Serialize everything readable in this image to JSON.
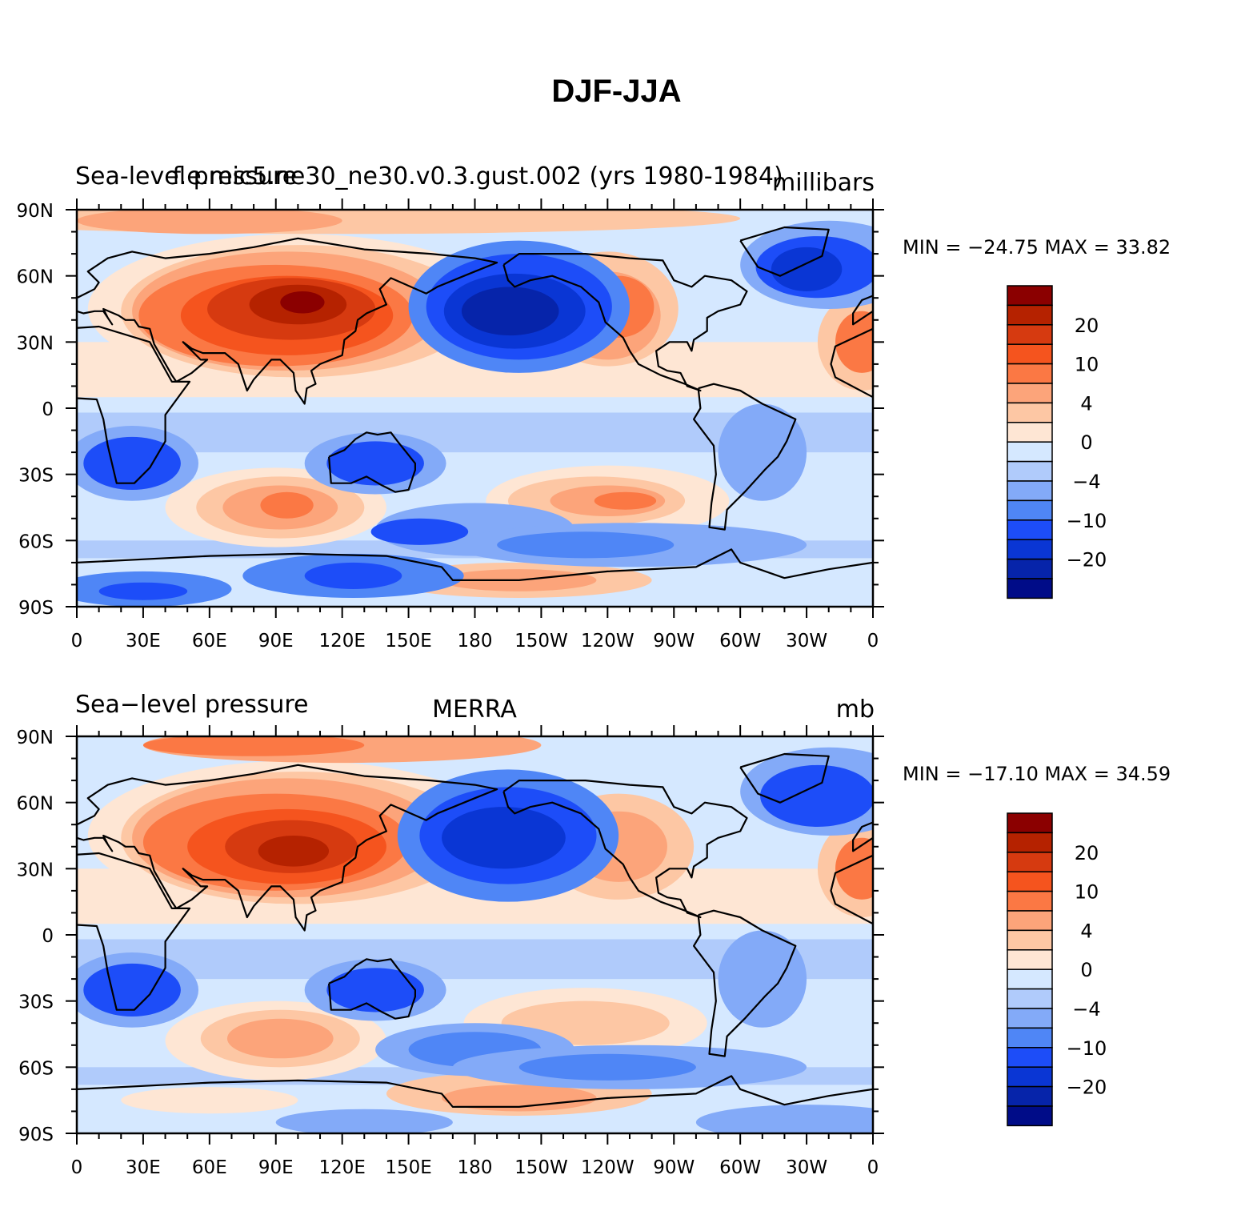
{
  "title": "DJF-JJA",
  "x_tick_labels": [
    "0",
    "30E",
    "60E",
    "90E",
    "120E",
    "150E",
    "180",
    "150W",
    "120W",
    "90W",
    "60W",
    "30W",
    "0"
  ],
  "y_tick_labels": [
    "90N",
    "60N",
    "30N",
    "0",
    "30S",
    "60S",
    "90S"
  ],
  "panels": [
    {
      "left_title": "Sea-level pressure",
      "center_title": "f.e.mic5.ne30_ne30.v0.3.gust.002 (yrs 1980-1984)",
      "right_title": "millibars",
      "stats_text": "MIN = −24.75 MAX =   33.82"
    },
    {
      "left_title": "Sea−level pressure",
      "center_title": "MERRA",
      "right_title": "mb",
      "stats_text": "MIN = −17.10 MAX =   34.59"
    }
  ],
  "colorbar": {
    "colors": [
      "#8b0000",
      "#b52200",
      "#d63a10",
      "#f5541e",
      "#fb7844",
      "#fca47a",
      "#fdc7a4",
      "#fee6d4",
      "#d5e8ff",
      "#b0cbfb",
      "#83aaf8",
      "#4f86f6",
      "#1d4df8",
      "#0a36d4",
      "#0624aa",
      "#000c88"
    ],
    "labels": [
      "20",
      "10",
      "4",
      "0",
      "−4",
      "−10",
      "−20"
    ]
  },
  "legend": {
    "levels": [
      -50,
      -40,
      -30,
      -20,
      -15,
      -10,
      -8,
      -4,
      -2,
      0,
      2,
      4,
      8,
      10,
      15,
      20,
      30
    ],
    "units": [
      "millibars",
      "mb"
    ]
  },
  "map_data": {
    "type": "filled-contour",
    "variable": "Sea-level pressure difference",
    "projection": "cylindrical-equidistant",
    "lon_range": [
      0,
      360
    ],
    "lat_range": [
      -90,
      90
    ],
    "panels": [
      {
        "id": "model",
        "min": -24.75,
        "max": 33.82
      },
      {
        "id": "merra",
        "min": -17.1,
        "max": 34.59
      }
    ]
  }
}
